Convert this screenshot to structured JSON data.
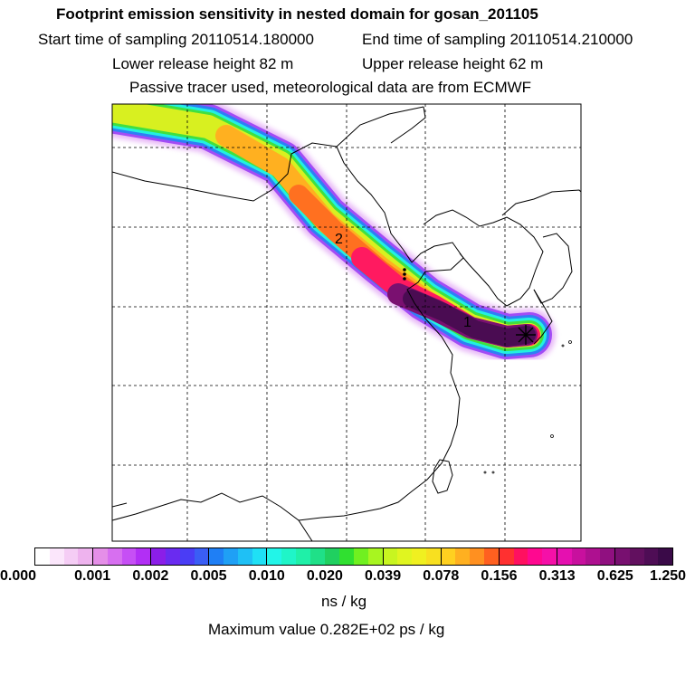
{
  "header": {
    "title": "Footprint emission sensitivity in nested domain for gosan_201105",
    "start_sampling": "Start time of sampling 20110514.180000",
    "end_sampling": "End time of sampling 20110514.210000",
    "lower_release": "Lower release height   82 m",
    "upper_release": "Upper release height   62 m",
    "tracer_info": "Passive tracer used, meteorological data are from ECMWF"
  },
  "map": {
    "markers": [
      "1",
      "2"
    ],
    "receptor_symbol": "receptor-star"
  },
  "colorbar": {
    "tick_labels": [
      "0.000",
      "0.001",
      "0.002",
      "0.005",
      "0.010",
      "0.020",
      "0.039",
      "0.078",
      "0.156",
      "0.313",
      "0.625",
      "1.250"
    ],
    "colors": [
      [
        "#ffffff",
        "#fbe6fb",
        "#f5cdf5",
        "#eeb3ee"
      ],
      [
        "#e58fe8",
        "#d76ff0",
        "#c64ff5",
        "#b22ff5"
      ],
      [
        "#8b1ee8",
        "#6a2bf0",
        "#4a3df5",
        "#3a5ef5"
      ],
      [
        "#1f7ff5",
        "#1fa0f5",
        "#1fc0f5",
        "#1fe0f5"
      ],
      [
        "#22f5e8",
        "#1ff5c8",
        "#1ff0a8",
        "#1fe088"
      ],
      [
        "#20d060",
        "#30e030",
        "#70f020",
        "#a8f520"
      ],
      [
        "#c8f520",
        "#e0f520",
        "#f0f020",
        "#f8e020"
      ],
      [
        "#ffd020",
        "#ffb020",
        "#ff9020",
        "#ff6020"
      ],
      [
        "#ff3030",
        "#ff1060",
        "#ff0890",
        "#f510a8"
      ],
      [
        "#e510b0",
        "#c8109e",
        "#ae1090",
        "#901080"
      ],
      [
        "#781070",
        "#62105f",
        "#4e0d55",
        "#3a0a48"
      ]
    ],
    "units": "ns / kg",
    "max_value": "Maximum value  0.282E+02 ps / kg"
  }
}
